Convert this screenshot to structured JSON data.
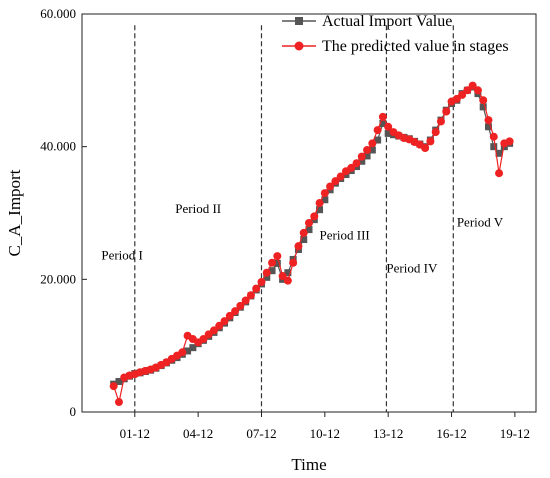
{
  "chart_data": {
    "type": "line",
    "xlabel": "Time",
    "ylabel": "C_A_Import",
    "ylim": [
      0,
      60000
    ],
    "yticks": [
      0,
      20000,
      40000,
      60000
    ],
    "ytick_labels": [
      "0",
      "20.000",
      "40.000",
      "60.000"
    ],
    "xticks": [
      12,
      48,
      84,
      120,
      156,
      192,
      228
    ],
    "xtick_labels": [
      "01-12",
      "04-12",
      "07-12",
      "10-12",
      "13-12",
      "16-12",
      "19-12"
    ],
    "xlim": [
      -18,
      240
    ],
    "period_boundaries": [
      12,
      84,
      155,
      193
    ],
    "periods": [
      {
        "label": "Period I",
        "x": -7,
        "y": 23000
      },
      {
        "label": "Period II",
        "x": 35,
        "y": 30000
      },
      {
        "label": "Period III",
        "x": 117,
        "y": 26000
      },
      {
        "label": "Period IV",
        "x": 155,
        "y": 21000
      },
      {
        "label": "Period V",
        "x": 195,
        "y": 28000
      }
    ],
    "legend_position": "top-right",
    "series": [
      {
        "name": "Actual Import Value",
        "color": "#555555",
        "marker": "square",
        "x": [
          0,
          3,
          6,
          9,
          12,
          15,
          18,
          21,
          24,
          27,
          30,
          33,
          36,
          39,
          42,
          45,
          48,
          51,
          54,
          57,
          60,
          63,
          66,
          69,
          72,
          75,
          78,
          81,
          84,
          87,
          90,
          93,
          96,
          99,
          102,
          105,
          108,
          111,
          114,
          117,
          120,
          123,
          126,
          129,
          132,
          135,
          138,
          141,
          144,
          147,
          150,
          153,
          156,
          159,
          162,
          165,
          168,
          171,
          174,
          177,
          180,
          183,
          186,
          189,
          192,
          195,
          198,
          201,
          204,
          207,
          210,
          213,
          216,
          219,
          222,
          225
        ],
        "y": [
          4200,
          4600,
          5000,
          5400,
          5800,
          5900,
          6100,
          6300,
          6600,
          7000,
          7400,
          7800,
          8200,
          8700,
          9200,
          9700,
          10300,
          10800,
          11400,
          12000,
          12700,
          13400,
          14200,
          15000,
          15800,
          16600,
          17500,
          18400,
          19300,
          20300,
          21300,
          22400,
          20000,
          21000,
          23000,
          24500,
          26000,
          27500,
          29000,
          30500,
          32000,
          33500,
          34500,
          35200,
          35800,
          36400,
          37000,
          37800,
          38600,
          39500,
          41000,
          43500,
          42000,
          41800,
          41600,
          41400,
          41200,
          40800,
          40400,
          40000,
          41000,
          42500,
          44000,
          45500,
          46500,
          47000,
          48000,
          48500,
          49000,
          48000,
          46000,
          43000,
          40000,
          39000,
          40000,
          40500
        ]
      },
      {
        "name": "The predicted value in stages",
        "color": "#ee2222",
        "marker": "circle",
        "x": [
          0,
          3,
          6,
          9,
          12,
          15,
          18,
          21,
          24,
          27,
          30,
          33,
          36,
          39,
          42,
          45,
          48,
          51,
          54,
          57,
          60,
          63,
          66,
          69,
          72,
          75,
          78,
          81,
          84,
          87,
          90,
          93,
          96,
          99,
          102,
          105,
          108,
          111,
          114,
          117,
          120,
          123,
          126,
          129,
          132,
          135,
          138,
          141,
          144,
          147,
          150,
          153,
          156,
          159,
          162,
          165,
          168,
          171,
          174,
          177,
          180,
          183,
          186,
          189,
          192,
          195,
          198,
          201,
          204,
          207,
          210,
          213,
          216,
          219,
          222,
          225
        ],
        "y": [
          3900,
          1500,
          5200,
          5500,
          5700,
          6000,
          6200,
          6400,
          6700,
          7100,
          7500,
          8000,
          8500,
          9000,
          11500,
          11000,
          10500,
          11000,
          11700,
          12300,
          13000,
          13700,
          14500,
          15200,
          16000,
          16800,
          17600,
          18600,
          19600,
          21000,
          22500,
          23500,
          20500,
          19800,
          22500,
          25000,
          27000,
          28500,
          29500,
          31500,
          33000,
          34000,
          34800,
          35500,
          36300,
          36800,
          37500,
          38500,
          39500,
          40500,
          42500,
          44500,
          43000,
          42200,
          41700,
          41300,
          41100,
          40700,
          40300,
          39800,
          40800,
          42200,
          43800,
          45300,
          46800,
          47200,
          47800,
          48500,
          49200,
          48500,
          47000,
          44000,
          41500,
          36000,
          40500,
          40800
        ]
      }
    ]
  }
}
